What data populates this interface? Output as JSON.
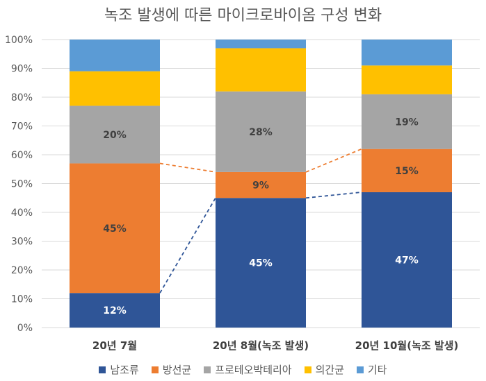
{
  "chart_data": {
    "type": "bar",
    "stacked": true,
    "title": "녹조 발생에 따른 마이크로바이옴 구성 변화",
    "categories": [
      "20년 7월",
      "20년 8월(녹조 발생)",
      "20년 10월(녹조 발생)"
    ],
    "ylim": [
      0,
      100
    ],
    "y_ticks": [
      "0%",
      "10%",
      "20%",
      "30%",
      "40%",
      "50%",
      "60%",
      "70%",
      "80%",
      "90%",
      "100%"
    ],
    "grid": true,
    "legend_position": "bottom",
    "series": [
      {
        "name": "남조류",
        "color": "#2F5597",
        "values": [
          12,
          45,
          47
        ],
        "labels": [
          "12%",
          "45%",
          "47%"
        ],
        "label_color": "#ffffff"
      },
      {
        "name": "방선균",
        "color": "#ED7D31",
        "values": [
          45,
          9,
          15
        ],
        "labels": [
          "45%",
          "9%",
          "15%"
        ],
        "label_color": "#404040"
      },
      {
        "name": "프로테오박테리아",
        "color": "#A5A5A5",
        "values": [
          20,
          28,
          19
        ],
        "labels": [
          "20%",
          "28%",
          "19%"
        ],
        "label_color": "#404040"
      },
      {
        "name": "의간균",
        "color": "#FFC000",
        "values": [
          12,
          15,
          10
        ],
        "labels": [
          "",
          "",
          ""
        ],
        "label_color": "#404040"
      },
      {
        "name": "기타",
        "color": "#5B9BD5",
        "values": [
          11,
          3,
          9
        ],
        "labels": [
          "",
          "",
          ""
        ],
        "label_color": "#404040"
      }
    ],
    "connector_series": [
      "남조류",
      "방선균"
    ]
  }
}
